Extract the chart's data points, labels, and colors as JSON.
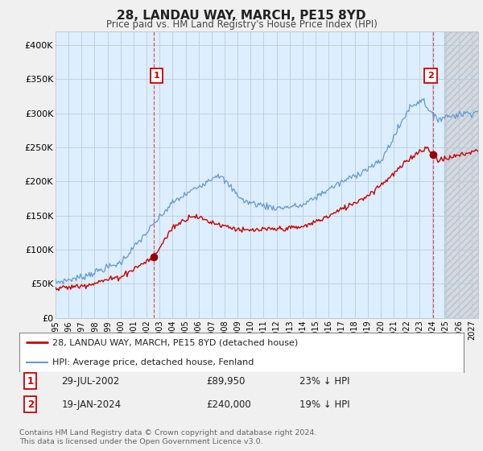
{
  "title": "28, LANDAU WAY, MARCH, PE15 8YD",
  "subtitle": "Price paid vs. HM Land Registry's House Price Index (HPI)",
  "xlim_start": 1995.0,
  "xlim_end": 2027.5,
  "ylim": [
    0,
    420000
  ],
  "yticks": [
    0,
    50000,
    100000,
    150000,
    200000,
    250000,
    300000,
    350000,
    400000
  ],
  "xtick_years": [
    1995,
    1996,
    1997,
    1998,
    1999,
    2000,
    2001,
    2002,
    2003,
    2004,
    2005,
    2006,
    2007,
    2008,
    2009,
    2010,
    2011,
    2012,
    2013,
    2014,
    2015,
    2016,
    2017,
    2018,
    2019,
    2020,
    2021,
    2022,
    2023,
    2024,
    2025,
    2026,
    2027
  ],
  "sale1_x": 2002.57,
  "sale1_y": 89950,
  "sale2_x": 2024.05,
  "sale2_y": 240000,
  "vline1_x": 2002.57,
  "vline2_x": 2024.05,
  "hpi_color": "#6699cc",
  "price_color": "#cc0000",
  "price_color_dark": "#990000",
  "legend_label_price": "28, LANDAU WAY, MARCH, PE15 8YD (detached house)",
  "legend_label_hpi": "HPI: Average price, detached house, Fenland",
  "annotation1_date": "29-JUL-2002",
  "annotation1_price": "£89,950",
  "annotation1_hpi": "23% ↓ HPI",
  "annotation2_date": "19-JAN-2024",
  "annotation2_price": "£240,000",
  "annotation2_hpi": "19% ↓ HPI",
  "footer": "Contains HM Land Registry data © Crown copyright and database right 2024.\nThis data is licensed under the Open Government Licence v3.0.",
  "bg_color": "#f0f0f0",
  "plot_bg_color": "#ddeeff",
  "grid_color": "#bbccdd",
  "hatch_start": 2024.9,
  "shade_end": 2027.5
}
